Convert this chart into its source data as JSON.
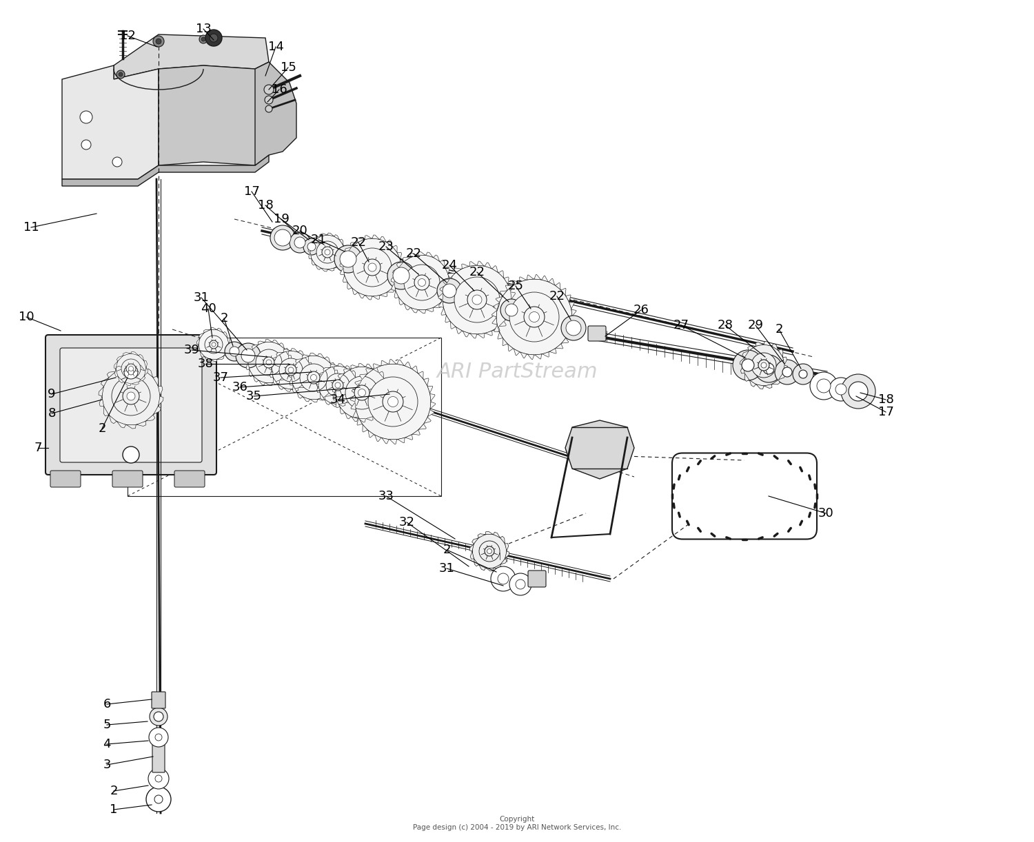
{
  "bg_color": "#ffffff",
  "line_color": "#1a1a1a",
  "text_color": "#000000",
  "watermark_color": "#c0c0c0",
  "watermark_text": "ARI PartStream",
  "copyright_text": "Copyright\nPage design (c) 2004 - 2019 by ARI Network Services, Inc.",
  "figsize": [
    15.0,
    12.22
  ],
  "dpi": 100
}
